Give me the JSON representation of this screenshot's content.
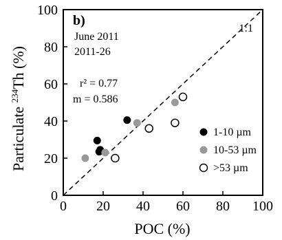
{
  "chart_data": {
    "type": "scatter",
    "panel_label": "b)",
    "annotations": {
      "line1": "June 2011",
      "line2": "2011-26",
      "r2": "r² = 0.77",
      "slope": "m = 0.586",
      "one_to_one": "1:1"
    },
    "xlabel": "POC (%)",
    "ylabel_prefix": "Particulate ",
    "ylabel_sup": "234",
    "ylabel_suffix": "Th (%)",
    "xlim": [
      0,
      100
    ],
    "ylim": [
      0,
      100
    ],
    "xticks": [
      0,
      20,
      40,
      60,
      80,
      100
    ],
    "yticks": [
      0,
      20,
      40,
      60,
      80,
      100
    ],
    "xtick_labels": [
      "0",
      "20",
      "40",
      "60",
      "80",
      "100"
    ],
    "ytick_labels": [
      "0",
      "20",
      "40",
      "60",
      "80",
      "100"
    ],
    "reference_line": {
      "name": "1:1",
      "style": "dashed",
      "from": [
        0,
        0
      ],
      "to": [
        100,
        100
      ]
    },
    "series": [
      {
        "name": "1-10 µm",
        "marker": "filled-circle",
        "color": "#000000",
        "points": [
          [
            32,
            40.5
          ],
          [
            17,
            29.5
          ],
          [
            18.5,
            24.5
          ],
          [
            18,
            23.5
          ]
        ]
      },
      {
        "name": "10-53 µm",
        "marker": "filled-circle",
        "color": "#999999",
        "points": [
          [
            37,
            39
          ],
          [
            56,
            50
          ],
          [
            21,
            23
          ],
          [
            11,
            20
          ]
        ]
      },
      {
        "name": ">53 µm",
        "marker": "open-circle",
        "color": "#000000",
        "points": [
          [
            60,
            53
          ],
          [
            56,
            39
          ],
          [
            43,
            36
          ],
          [
            26,
            20
          ]
        ]
      }
    ],
    "legend_position": "bottom-right",
    "grid": false
  }
}
